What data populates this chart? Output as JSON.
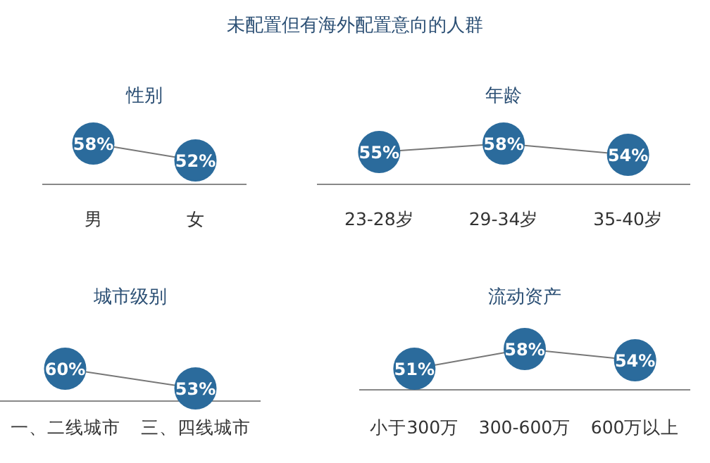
{
  "chart_data": [
    {
      "type": "other",
      "title": "未配置但有海外配置意向的人群"
    },
    {
      "type": "line",
      "title": "性别",
      "categories": [
        "男",
        "女"
      ],
      "values": [
        58,
        52
      ],
      "value_labels": [
        "58%",
        "52%"
      ],
      "color": "#2b6b9c",
      "marker": "circle"
    },
    {
      "type": "line",
      "title": "年龄",
      "categories": [
        "23-28岁",
        "29-34岁",
        "35-40岁"
      ],
      "values": [
        55,
        58,
        54
      ],
      "value_labels": [
        "55%",
        "58%",
        "54%"
      ],
      "color": "#2b6b9c",
      "marker": "circle"
    },
    {
      "type": "line",
      "title": "城市级别",
      "categories": [
        "一、二线城市",
        "三、四线城市"
      ],
      "values": [
        60,
        53
      ],
      "value_labels": [
        "60%",
        "53%"
      ],
      "color": "#2b6b9c",
      "marker": "circle"
    },
    {
      "type": "line",
      "title": "流动资产",
      "categories": [
        "小于300万",
        "300-600万",
        "600万以上"
      ],
      "values": [
        51,
        58,
        54
      ],
      "value_labels": [
        "51%",
        "58%",
        "54%"
      ],
      "color": "#2b6b9c",
      "marker": "circle"
    }
  ]
}
